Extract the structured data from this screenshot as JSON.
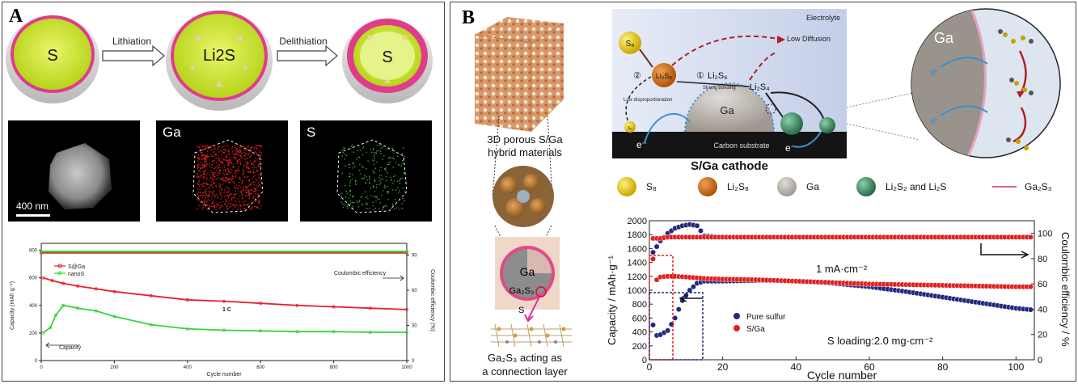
{
  "panelA": {
    "label": "A",
    "schematic": {
      "shells": [
        "S",
        "Li2S",
        "S"
      ],
      "arrow1": "Lithiation",
      "arrow2": "Delithiation"
    },
    "eds": {
      "scale_bar": "400 nm",
      "map1": "Ga",
      "map2": "S"
    },
    "chart": {
      "ylabel_left": "Capacity (mAh g⁻¹)",
      "ylabel_right": "Coulombic efficiency (%)",
      "xlabel": "Cycle number",
      "legend": [
        "S@Ga",
        "nanoS"
      ],
      "annot_rate": "1 C",
      "annot_ce": "Coulombic efficiency",
      "annot_cap": "Capacity",
      "xticks": [
        "0",
        "200",
        "400",
        "600",
        "800",
        "1000"
      ],
      "yticks_left": [
        "0",
        "200",
        "400",
        "600",
        "800"
      ],
      "yticks_right": [
        "0",
        "30",
        "60",
        "90"
      ]
    }
  },
  "panelB": {
    "label": "B",
    "porous_caption_1": "3D porous S/Ga",
    "porous_caption_2": "hybrid materials",
    "sphere_ga": "Ga",
    "sphere_ga2s3": "Ga₂S₃",
    "sphere_s": "S",
    "layer_caption_1": "Ga₂S₃ acting as",
    "layer_caption_2": "a connection layer",
    "mech": {
      "electrolyte": "Electrolyte",
      "s8": "S₈",
      "li2s8": "Li₂S₈",
      "li2s6": "Li₂S₆",
      "li2s4": "Li₂S₄",
      "low_diffusion": "Low Diffusion",
      "strong_bonding": "Strong bonding",
      "circ1": "①",
      "circ2": "②",
      "low_disp": "Low disproportionation",
      "ga": "Ga",
      "s4": "S₄",
      "electron": "e⁻",
      "substrate": "Carbon substrate",
      "title": "S/Ga cathode"
    },
    "zoom": {
      "ga": "Ga",
      "e": "e"
    },
    "legend": [
      "S₈",
      "Li₂S₈",
      "Ga",
      "Li₂S₂ and Li₂S",
      "Ga₂S₃"
    ],
    "chart": {
      "ylabel_left": "Capacity / mAh·g⁻¹",
      "ylabel_right": "Coulombic efficiency / %",
      "xlabel": "Cycle number",
      "annot_rate": "1 mA·cm⁻²",
      "annot_loading": "S loading:2.0 mg·cm⁻²",
      "legend": [
        "Pure sulfur",
        "S/Ga"
      ],
      "xticks": [
        "0",
        "20",
        "40",
        "60",
        "80",
        "100"
      ],
      "yticks_left": [
        "0",
        "200",
        "400",
        "600",
        "800",
        "1000",
        "1200",
        "1400",
        "1600",
        "1800",
        "2000"
      ],
      "yticks_right": [
        "0",
        "20",
        "40",
        "60",
        "80",
        "100"
      ]
    }
  },
  "chart_data": [
    {
      "type": "line",
      "xlabel": "Cycle number",
      "ylabel": "Capacity (mAh g⁻¹)",
      "y2label": "Coulombic efficiency (%)",
      "xlim": [
        0,
        1000
      ],
      "ylim": [
        0,
        850
      ],
      "y2lim": [
        0,
        100
      ],
      "series": [
        {
          "name": "S@Ga",
          "color": "#e8202a",
          "axis": "left",
          "x": [
            5,
            30,
            60,
            100,
            150,
            200,
            300,
            400,
            500,
            600,
            700,
            800,
            900,
            1000
          ],
          "values": [
            600,
            580,
            560,
            540,
            520,
            500,
            470,
            440,
            430,
            415,
            400,
            390,
            380,
            370
          ]
        },
        {
          "name": "nanoS",
          "color": "#38d43a",
          "axis": "left",
          "x": [
            5,
            25,
            40,
            60,
            100,
            150,
            200,
            300,
            400,
            500,
            600,
            700,
            800,
            900,
            1000
          ],
          "values": [
            200,
            240,
            330,
            400,
            380,
            360,
            320,
            260,
            230,
            220,
            215,
            210,
            210,
            205,
            205
          ]
        },
        {
          "name": "S@Ga CE",
          "color": "#e8202a",
          "axis": "right",
          "x": [
            0,
            1000
          ],
          "values": [
            92,
            92
          ]
        },
        {
          "name": "nanoS CE",
          "color": "#38d43a",
          "axis": "right",
          "x": [
            0,
            1000
          ],
          "values": [
            93,
            93
          ]
        }
      ]
    },
    {
      "type": "scatter",
      "xlabel": "Cycle number",
      "ylabel": "Capacity / mAh·g⁻¹",
      "y2label": "Coulombic efficiency / %",
      "xlim": [
        0,
        105
      ],
      "ylim": [
        0,
        2000
      ],
      "y2lim": [
        0,
        110
      ],
      "series": [
        {
          "name": "Pure sulfur",
          "color": "#1f2a7c",
          "axis": "left",
          "x": [
            1,
            2,
            3,
            5,
            7,
            9,
            11,
            13,
            15,
            20,
            30,
            40,
            50,
            60,
            70,
            80,
            90,
            100,
            104
          ],
          "values": [
            500,
            350,
            360,
            420,
            600,
            850,
            1000,
            1100,
            1130,
            1130,
            1140,
            1130,
            1100,
            1050,
            980,
            900,
            820,
            740,
            720
          ]
        },
        {
          "name": "S/Ga",
          "color": "#e02020",
          "axis": "left",
          "x": [
            1,
            2,
            3,
            5,
            7,
            10,
            15,
            20,
            30,
            40,
            50,
            60,
            70,
            80,
            90,
            100,
            104
          ],
          "values": [
            1450,
            1150,
            1190,
            1200,
            1200,
            1190,
            1170,
            1160,
            1150,
            1130,
            1110,
            1090,
            1080,
            1070,
            1060,
            1050,
            1050
          ]
        },
        {
          "name": "Pure sulfur CE",
          "color": "#1f2a7c",
          "axis": "right",
          "x": [
            1,
            3,
            5,
            7,
            9,
            11,
            13,
            15,
            20,
            40,
            60,
            80,
            100,
            104
          ],
          "values": [
            85,
            94,
            100,
            104,
            106,
            107,
            106,
            98,
            97,
            97,
            97,
            97,
            97,
            97
          ]
        },
        {
          "name": "S/Ga CE",
          "color": "#e02020",
          "axis": "right",
          "x": [
            1,
            3,
            5,
            10,
            20,
            40,
            60,
            80,
            100,
            104
          ],
          "values": [
            96,
            96,
            97,
            97,
            97,
            97,
            97,
            97,
            97,
            97
          ]
        }
      ]
    }
  ]
}
